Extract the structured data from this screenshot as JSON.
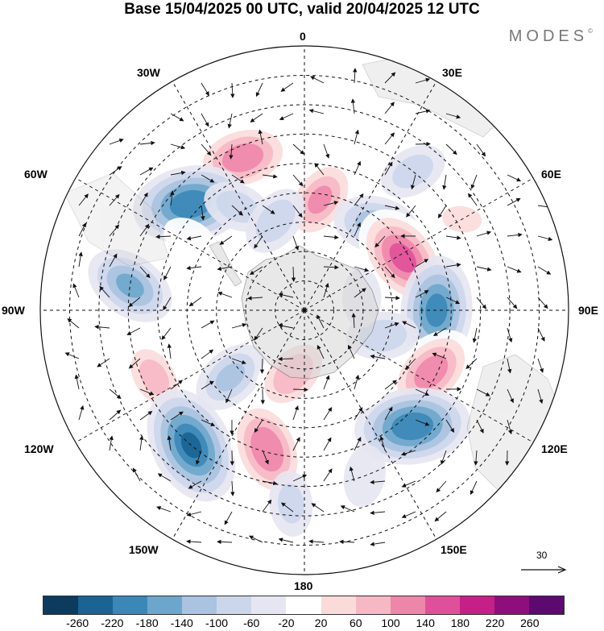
{
  "title": "Base 15/04/2025 00 UTC, valid 20/04/2025 12 UTC",
  "brand": "MODES",
  "brand_mark": "©",
  "longitude_labels": {
    "top": "0",
    "top_left": "30W",
    "top_right": "30E",
    "upper_left": "60W",
    "upper_right": "60E",
    "left": "90W",
    "right": "90E",
    "lower_left": "120W",
    "lower_right": "120E",
    "bottom_left": "150W",
    "bottom_right": "150E",
    "bottom": "180"
  },
  "reference_vector": "30",
  "colorbar": {
    "colors": [
      "#0c3b5e",
      "#1a6393",
      "#3b87b8",
      "#6da6cc",
      "#a9c3e0",
      "#ccd6eb",
      "#e6e6f2",
      "#ffffff",
      "#fbdada",
      "#f6b8c4",
      "#ee86aa",
      "#e0509a",
      "#c51f88",
      "#8e0f7c",
      "#5c0a70"
    ],
    "ticks": [
      "-260",
      "-220",
      "-180",
      "-140",
      "-100",
      "-60",
      "-20",
      "20",
      "60",
      "100",
      "140",
      "180",
      "220",
      "260"
    ]
  },
  "anomalies": [
    {
      "lon": -22,
      "lat": -34,
      "value": 165
    },
    {
      "lon": -47,
      "lat": -37,
      "value": -210
    },
    {
      "lon": -33,
      "lat": -48,
      "value": -70
    },
    {
      "lon": -58,
      "lat": -44,
      "value": 30
    },
    {
      "lon": -82,
      "lat": -30,
      "value": -140
    },
    {
      "lon": -72,
      "lat": -48,
      "value": 40
    },
    {
      "lon": -114,
      "lat": -34,
      "value": 110
    },
    {
      "lon": -140,
      "lat": -30,
      "value": -220
    },
    {
      "lon": -165,
      "lat": -41,
      "value": 175
    },
    {
      "lon": -176,
      "lat": -24,
      "value": -60
    },
    {
      "lon": -132,
      "lat": -56,
      "value": -100
    },
    {
      "lon": -170,
      "lat": -68,
      "value": 130
    },
    {
      "lon": -90,
      "lat": -60,
      "value": 45
    },
    {
      "lon": 8,
      "lat": -52,
      "value": 140
    },
    {
      "lon": -18,
      "lat": -58,
      "value": -80
    },
    {
      "lon": 40,
      "lat": -52,
      "value": -120
    },
    {
      "lon": 62,
      "lat": -52,
      "value": 190
    },
    {
      "lon": 90,
      "lat": -45,
      "value": -190
    },
    {
      "lon": 116,
      "lat": -42,
      "value": 160
    },
    {
      "lon": 137,
      "lat": -36,
      "value": -210
    },
    {
      "lon": 108,
      "lat": -62,
      "value": -80
    },
    {
      "lon": 38,
      "lat": -30,
      "value": -70
    },
    {
      "lon": 60,
      "lat": -28,
      "value": 60
    },
    {
      "lon": 160,
      "lat": -30,
      "value": -50
    },
    {
      "lon": 10,
      "lat": -32,
      "value": 40
    },
    {
      "lon": 78,
      "lat": -70,
      "value": -40
    },
    {
      "lon": -100,
      "lat": -48,
      "value": 50
    },
    {
      "lon": 148,
      "lat": -58,
      "value": 40
    }
  ]
}
